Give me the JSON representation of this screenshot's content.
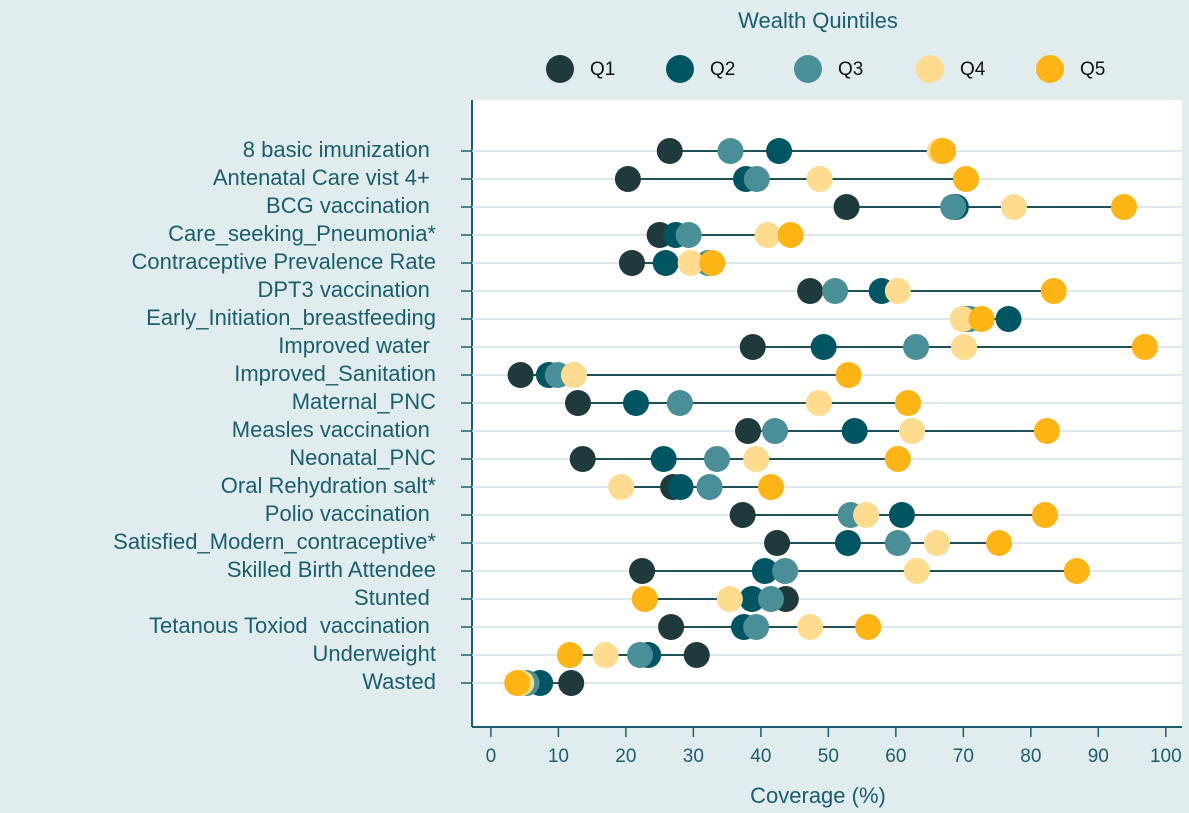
{
  "chart_data": {
    "type": "dot",
    "legend_title": "Wealth Quintiles",
    "x_label": "Coverage (%)",
    "categories": [
      "8 basic imunization ",
      "Antenatal Care vist 4+ ",
      "BCG vaccination ",
      "Care_seeking_Pneumonia*",
      "Contraceptive Prevalence Rate",
      "DPT3 vaccination ",
      "Early_Initiation_breastfeeding",
      "Improved water ",
      "Improved_Sanitation",
      "Maternal_PNC",
      "Measles vaccination ",
      "Neonatal_PNC",
      "Oral Rehydration salt*",
      "Polio vaccination ",
      "Satisfied_Modern_contraceptive*",
      "Skilled Birth Attendee",
      "Stunted ",
      "Tetanous Toxiod  vaccination ",
      "Underweight",
      "Wasted"
    ],
    "series": [
      {
        "name": "Q1",
        "color": "#1e3a3c",
        "values": [
          26.5,
          20.3,
          52.7,
          25.0,
          20.9,
          47.3,
          70.4,
          38.8,
          4.4,
          12.9,
          38.1,
          13.6,
          27.0,
          37.3,
          42.4,
          22.4,
          43.7,
          26.7,
          30.5,
          11.9
        ]
      },
      {
        "name": "Q2",
        "color": "#005562",
        "values": [
          42.7,
          37.8,
          68.9,
          27.4,
          25.9,
          57.9,
          76.7,
          49.3,
          8.6,
          21.5,
          53.9,
          25.6,
          28.1,
          60.9,
          52.9,
          40.6,
          38.7,
          37.5,
          23.3,
          7.3
        ]
      },
      {
        "name": "Q3",
        "color": "#4a8e98",
        "values": [
          35.5,
          39.4,
          68.5,
          29.3,
          32.2,
          51.0,
          71.0,
          63.0,
          9.9,
          28.0,
          42.1,
          33.5,
          32.4,
          53.3,
          60.3,
          43.6,
          41.5,
          39.3,
          22.1,
          5.3
        ]
      },
      {
        "name": "Q4",
        "color": "#fddc8f",
        "values": [
          66.5,
          48.7,
          77.5,
          41.0,
          29.6,
          60.3,
          69.9,
          70.1,
          12.3,
          48.6,
          62.4,
          39.3,
          19.3,
          55.6,
          66.1,
          63.1,
          35.4,
          47.3,
          17.0,
          4.5
        ]
      },
      {
        "name": "Q5",
        "color": "#fdb515",
        "values": [
          67.0,
          70.4,
          93.8,
          44.4,
          32.8,
          83.4,
          72.7,
          96.9,
          53.0,
          61.8,
          82.4,
          60.3,
          41.5,
          82.1,
          75.3,
          86.8,
          22.8,
          55.9,
          11.7,
          3.9
        ]
      }
    ],
    "xlim": [
      -2.8,
      102.4
    ],
    "xticks": [
      0,
      10,
      20,
      30,
      40,
      50,
      60,
      70,
      80,
      90,
      100
    ],
    "grid": true
  }
}
